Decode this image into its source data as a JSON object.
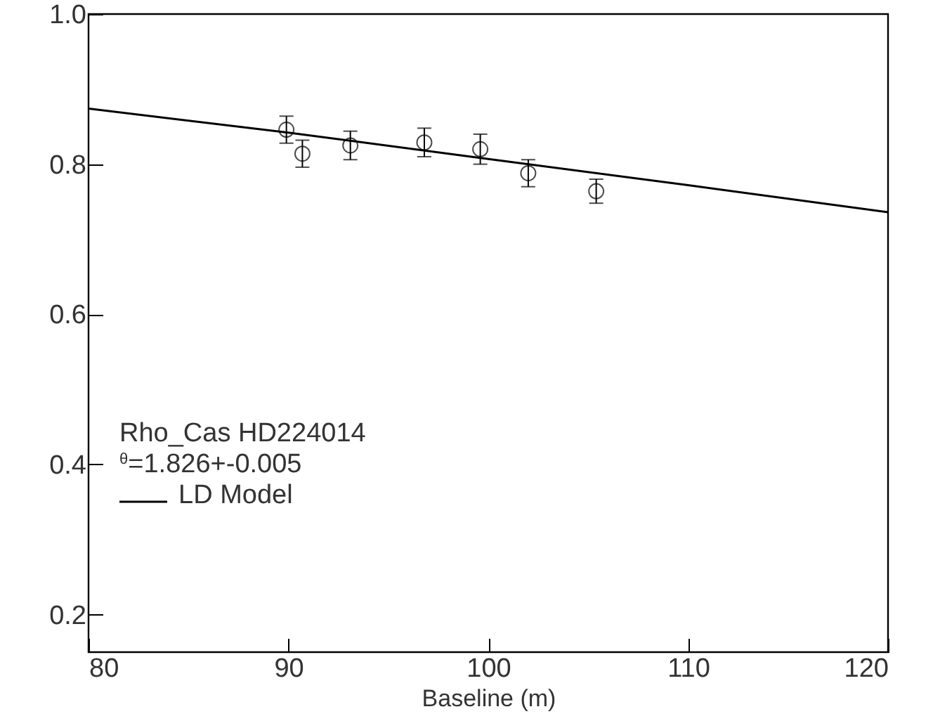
{
  "chart_data": {
    "type": "scatter",
    "xlabel": "Baseline (m)",
    "xlim": [
      80,
      120
    ],
    "ylim": [
      0.15,
      1.0
    ],
    "xticks": [
      80,
      90,
      100,
      110,
      120
    ],
    "yticks": [
      0.2,
      0.4,
      0.6,
      0.8,
      {
        "value": 1.0,
        "label": "1.0"
      }
    ],
    "legend": "bottom left",
    "grid": false,
    "annotations": [
      "Rho_Cas HD224014",
      "$^{θ}$=1.826+-0.005"
    ],
    "series": [
      {
        "marker": "circle",
        "color": "#000000",
        "x": [
          89.9,
          90.7,
          93.1,
          96.8,
          99.6,
          102.0,
          105.4
        ],
        "values": [
          0.846,
          0.814,
          0.825,
          0.829,
          0.82,
          0.788,
          0.764
        ],
        "errors": [
          0.018,
          0.018,
          0.019,
          0.019,
          0.02,
          0.018,
          0.016
        ]
      },
      {
        "type": "line",
        "name": "LD Model",
        "color": "#000000",
        "x": [
          80,
          90,
          100,
          110,
          120
        ],
        "values": [
          0.874,
          0.842,
          0.807,
          0.772,
          0.736
        ]
      }
    ]
  }
}
